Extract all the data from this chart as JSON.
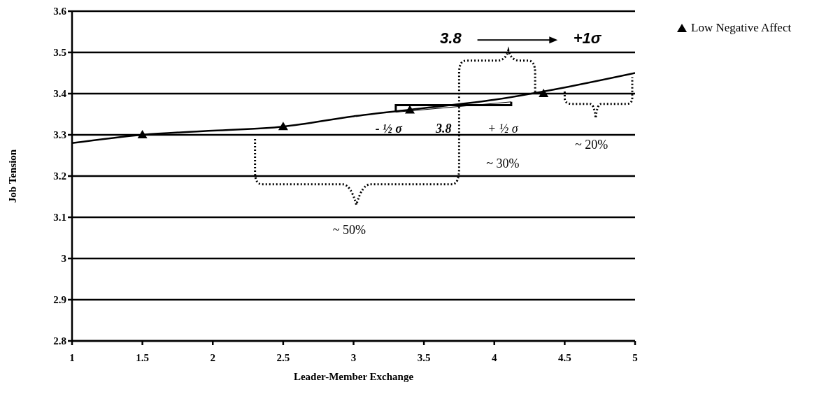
{
  "chart_data": {
    "type": "scatter",
    "xlabel": "Leader-Member Exchange",
    "ylabel": "Job Tension",
    "xlim": [
      1,
      5
    ],
    "xticks": [
      1,
      1.5,
      2,
      2.5,
      3,
      3.5,
      4,
      4.5,
      5
    ],
    "ylim": [
      2.8,
      3.6
    ],
    "yticks": [
      2.8,
      2.9,
      3,
      3.1,
      3.2,
      3.3,
      3.4,
      3.5,
      3.6
    ],
    "grid": "y",
    "legend": "top right",
    "marker": "triangle",
    "series": [
      {
        "name": "Low Negative Affect",
        "color": "#000000",
        "x": [
          1.5,
          2.5,
          3.4,
          4.35
        ],
        "values": [
          3.3,
          3.32,
          3.36,
          3.4
        ]
      },
      {
        "type": "line",
        "color": "#000000",
        "line_style": "solid",
        "marker": "none",
        "x": [
          1,
          1.5,
          2,
          2.5,
          3,
          3.5,
          4,
          4.5,
          5
        ],
        "values": [
          3.28,
          3.3,
          3.31,
          3.32,
          3.345,
          3.365,
          3.385,
          3.415,
          3.45
        ]
      }
    ],
    "annotations": [
      "3.8",
      "+1σ",
      "- ½ σ",
      "3.8",
      "+ ½ σ",
      "~ 20%",
      "~ 30%",
      "~ 50%"
    ]
  }
}
